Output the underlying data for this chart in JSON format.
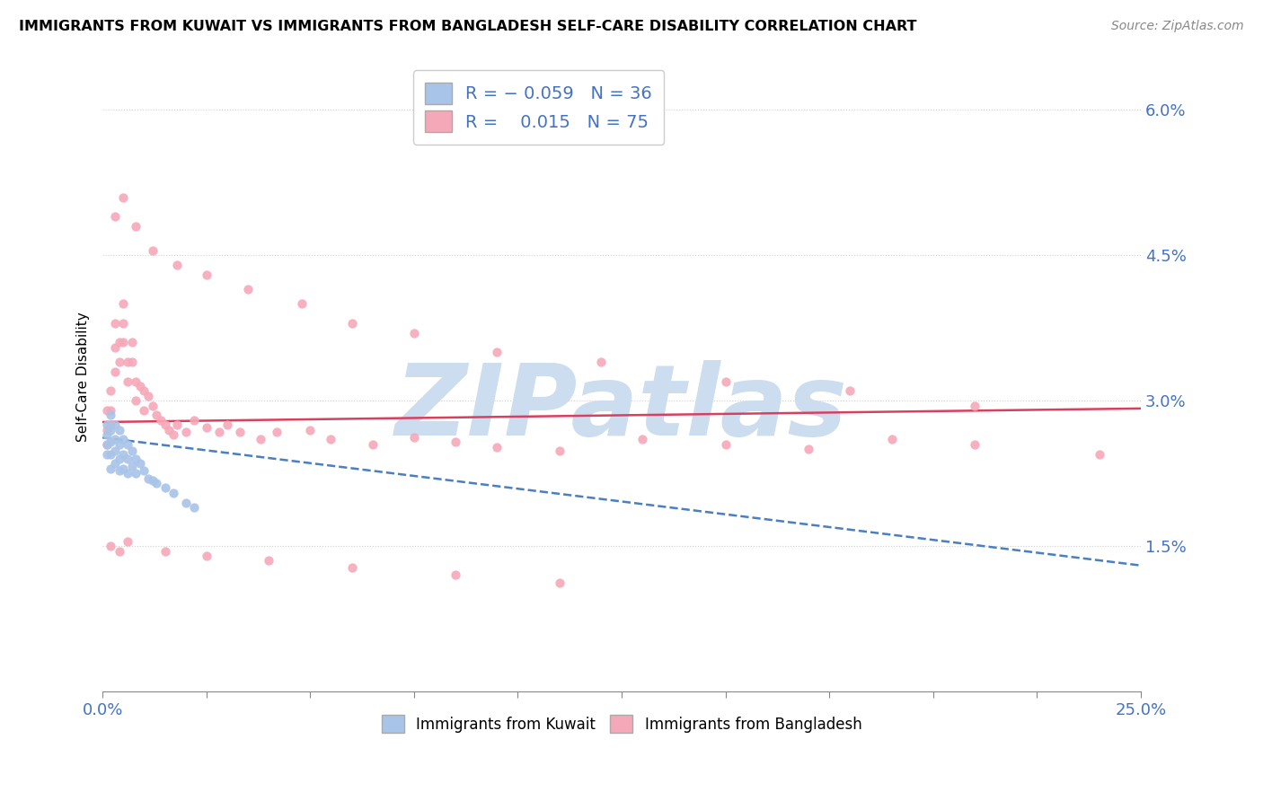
{
  "title": "IMMIGRANTS FROM KUWAIT VS IMMIGRANTS FROM BANGLADESH SELF-CARE DISABILITY CORRELATION CHART",
  "source": "Source: ZipAtlas.com",
  "ylabel": "Self-Care Disability",
  "xlim": [
    0.0,
    0.25
  ],
  "ylim": [
    0.0,
    0.065
  ],
  "xticks": [
    0.0,
    0.025,
    0.05,
    0.075,
    0.1,
    0.125,
    0.15,
    0.175,
    0.2,
    0.225,
    0.25
  ],
  "yticks_right": [
    0.0,
    0.015,
    0.03,
    0.045,
    0.06
  ],
  "ytick_labels_right": [
    "",
    "1.5%",
    "3.0%",
    "4.5%",
    "6.0%"
  ],
  "kuwait_R": -0.059,
  "kuwait_N": 36,
  "bangladesh_R": 0.015,
  "bangladesh_N": 75,
  "kuwait_color": "#a8c4e8",
  "bangladesh_color": "#f5a8b8",
  "kuwait_line_color": "#4a7fc0",
  "bangladesh_line_color": "#d94060",
  "watermark": "ZIPatlas",
  "watermark_color": "#ccddf0",
  "kuwait_x": [
    0.001,
    0.001,
    0.001,
    0.001,
    0.002,
    0.002,
    0.002,
    0.002,
    0.002,
    0.003,
    0.003,
    0.003,
    0.003,
    0.004,
    0.004,
    0.004,
    0.004,
    0.005,
    0.005,
    0.005,
    0.006,
    0.006,
    0.006,
    0.007,
    0.007,
    0.008,
    0.008,
    0.009,
    0.01,
    0.011,
    0.012,
    0.013,
    0.015,
    0.017,
    0.02,
    0.022
  ],
  "kuwait_y": [
    0.0275,
    0.0265,
    0.0255,
    0.0245,
    0.0285,
    0.027,
    0.0258,
    0.0245,
    0.023,
    0.0275,
    0.026,
    0.0248,
    0.0235,
    0.027,
    0.0255,
    0.024,
    0.0228,
    0.026,
    0.0245,
    0.023,
    0.0255,
    0.024,
    0.0225,
    0.0248,
    0.0233,
    0.024,
    0.0225,
    0.0235,
    0.0228,
    0.022,
    0.0218,
    0.0215,
    0.021,
    0.0205,
    0.0195,
    0.019
  ],
  "bangladesh_x": [
    0.001,
    0.001,
    0.001,
    0.002,
    0.002,
    0.002,
    0.003,
    0.003,
    0.003,
    0.004,
    0.004,
    0.005,
    0.005,
    0.005,
    0.006,
    0.006,
    0.007,
    0.007,
    0.008,
    0.008,
    0.009,
    0.01,
    0.01,
    0.011,
    0.012,
    0.013,
    0.014,
    0.015,
    0.016,
    0.017,
    0.018,
    0.02,
    0.022,
    0.025,
    0.028,
    0.03,
    0.033,
    0.038,
    0.042,
    0.05,
    0.055,
    0.065,
    0.075,
    0.085,
    0.095,
    0.11,
    0.13,
    0.15,
    0.17,
    0.19,
    0.21,
    0.24,
    0.003,
    0.005,
    0.008,
    0.012,
    0.018,
    0.025,
    0.035,
    0.048,
    0.06,
    0.075,
    0.095,
    0.12,
    0.15,
    0.18,
    0.21,
    0.002,
    0.004,
    0.006,
    0.015,
    0.025,
    0.04,
    0.06,
    0.085,
    0.11
  ],
  "bangladesh_y": [
    0.029,
    0.027,
    0.0255,
    0.031,
    0.029,
    0.0275,
    0.038,
    0.0355,
    0.033,
    0.036,
    0.034,
    0.04,
    0.038,
    0.036,
    0.034,
    0.032,
    0.036,
    0.034,
    0.032,
    0.03,
    0.0315,
    0.031,
    0.029,
    0.0305,
    0.0295,
    0.0285,
    0.028,
    0.0275,
    0.027,
    0.0265,
    0.0275,
    0.0268,
    0.028,
    0.0272,
    0.0268,
    0.0275,
    0.0268,
    0.026,
    0.0268,
    0.027,
    0.026,
    0.0255,
    0.0262,
    0.0258,
    0.0252,
    0.0248,
    0.026,
    0.0255,
    0.025,
    0.026,
    0.0255,
    0.0245,
    0.049,
    0.051,
    0.048,
    0.0455,
    0.044,
    0.043,
    0.0415,
    0.04,
    0.038,
    0.037,
    0.035,
    0.034,
    0.032,
    0.031,
    0.0295,
    0.015,
    0.0145,
    0.0155,
    0.0145,
    0.014,
    0.0135,
    0.0128,
    0.012,
    0.0112
  ]
}
